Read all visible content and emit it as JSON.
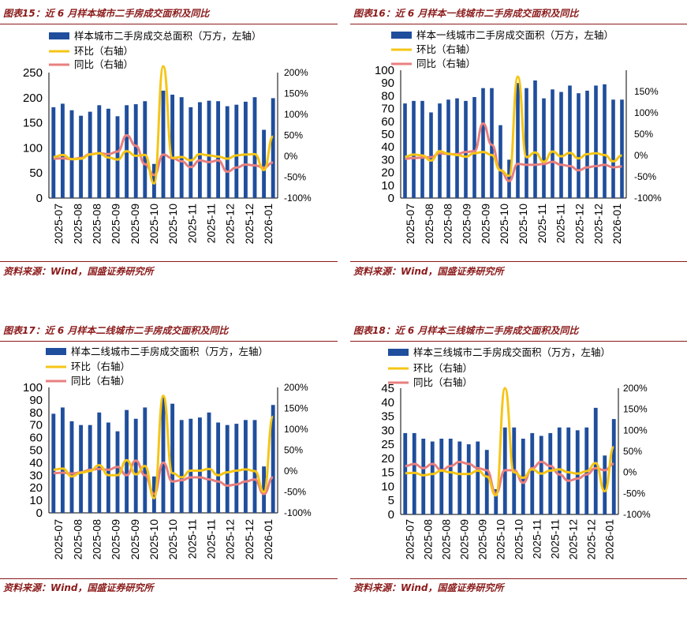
{
  "colors": {
    "bar": "#1f4e9c",
    "mom": "#f5c516",
    "yoy": "#e8807f",
    "title": "#8b1a1a"
  },
  "source_text": "资料来源：Wind，国盛证券研究所",
  "x_tick_labels": [
    "2025-07",
    "2025-08",
    "2025-08",
    "2025-09",
    "2025-09",
    "2025-10",
    "2025-10",
    "2025-11",
    "2025-11",
    "2025-12",
    "2025-12",
    "2026-01"
  ],
  "chart_data": [
    {
      "type": "bar",
      "title": "图表15：近 6 月样本城市二手房成交面积及同比",
      "legend": [
        "样本城市二手房成交总面积（万方，左轴）",
        "环比（右轴）",
        "同比（右轴）"
      ],
      "left_axis": {
        "min": 0,
        "max": 250,
        "ticks": [
          "0",
          "50",
          "100",
          "150",
          "200",
          "250"
        ]
      },
      "right_axis": {
        "min": -100,
        "max": 200,
        "ticks": [
          "-100%",
          "-50%",
          "0%",
          "50%",
          "100%",
          "150%",
          "200%"
        ]
      },
      "bars": [
        181,
        188,
        175,
        164,
        172,
        185,
        178,
        163,
        185,
        187,
        193,
        68,
        214,
        206,
        201,
        181,
        191,
        194,
        193,
        183,
        186,
        192,
        201,
        136,
        199
      ],
      "mom": [
        -2,
        3,
        -7,
        -6,
        4,
        7,
        -3,
        -8,
        12,
        1,
        3,
        -65,
        215,
        -4,
        -2,
        -10,
        5,
        2,
        -1,
        -6,
        2,
        4,
        5,
        -33,
        47
      ],
      "yoy": [
        -6,
        -5,
        -7,
        -4,
        5,
        7,
        5,
        11,
        50,
        25,
        -19,
        -45,
        4,
        -5,
        -12,
        -26,
        -10,
        -14,
        -10,
        -37,
        -27,
        -20,
        -22,
        -27,
        -15
      ]
    },
    {
      "type": "bar",
      "title": "图表16：近 6 月样本一线城市二手房成交面积及同比",
      "legend": [
        "样本一线城市二手房成交面积（万方，左轴）",
        "环比（右轴）",
        "同比（右轴）"
      ],
      "left_axis": {
        "min": 0,
        "max": 100,
        "ticks": [
          "0",
          "10",
          "20",
          "30",
          "40",
          "50",
          "60",
          "70",
          "80",
          "90",
          "100"
        ]
      },
      "right_axis": {
        "min": -100,
        "max": 200,
        "ticks": [
          "-100%",
          "-50%",
          "0%",
          "50%",
          "100%",
          "150%"
        ]
      },
      "bars": [
        74,
        76,
        76,
        67,
        74,
        77,
        78,
        76,
        79,
        86,
        86,
        57,
        30,
        90,
        86,
        92,
        78,
        85,
        83,
        88,
        82,
        84,
        88,
        89,
        77,
        77
      ],
      "mom": [
        -3,
        2,
        0,
        -12,
        10,
        4,
        1,
        -3,
        5,
        8,
        1,
        -35,
        -48,
        185,
        -4,
        7,
        -15,
        9,
        -2,
        6,
        -7,
        3,
        5,
        1,
        -14,
        0
      ],
      "yoy": [
        -8,
        -6,
        -5,
        -4,
        5,
        3,
        3,
        8,
        10,
        75,
        25,
        -35,
        -60,
        -20,
        -22,
        -22,
        -20,
        -15,
        -22,
        -25,
        -35,
        -28,
        -25,
        -22,
        -28,
        -26
      ]
    },
    {
      "type": "bar",
      "title": "图表17：近 6 月样本二线城市二手房成交面积及同比",
      "legend": [
        "样本二线城市二手房成交面积（万方，左轴）",
        "环比（右轴）",
        "同比（右轴）"
      ],
      "left_axis": {
        "min": 0,
        "max": 100,
        "ticks": [
          "0",
          "10",
          "20",
          "30",
          "40",
          "50",
          "60",
          "70",
          "80",
          "90",
          "100"
        ]
      },
      "right_axis": {
        "min": -100,
        "max": 200,
        "ticks": [
          "-100%",
          "-50%",
          "0%",
          "50%",
          "100%",
          "150%",
          "200%"
        ]
      },
      "bars": [
        79,
        84,
        73,
        70,
        70,
        80,
        72,
        65,
        82,
        75,
        84,
        29,
        92,
        87,
        74,
        75,
        76,
        80,
        72,
        70,
        71,
        74,
        74,
        37,
        86
      ],
      "mom": [
        3,
        6,
        -13,
        -4,
        0,
        14,
        -10,
        -10,
        26,
        -8,
        12,
        -65,
        180,
        -5,
        -15,
        1,
        1,
        5,
        -10,
        -3,
        1,
        4,
        0,
        -50,
        130
      ],
      "yoy": [
        -5,
        -4,
        -6,
        -3,
        3,
        5,
        3,
        10,
        -10,
        25,
        -10,
        -55,
        20,
        -25,
        -22,
        -15,
        -15,
        -20,
        -25,
        -35,
        -32,
        -25,
        -20,
        -55,
        -15
      ]
    },
    {
      "type": "bar",
      "title": "图表18：近 6 月样本三线城市二手房成交面积及同比",
      "legend": [
        "样本三线城市二手房成交面积（万方，左轴）",
        "环比（右轴）",
        "同比（右轴）"
      ],
      "left_axis": {
        "min": 0,
        "max": 45,
        "ticks": [
          "0",
          "5",
          "10",
          "15",
          "20",
          "25",
          "30",
          "35",
          "40",
          "45"
        ]
      },
      "right_axis": {
        "min": -100,
        "max": 200,
        "ticks": [
          "-100%",
          "-50%",
          "0%",
          "50%",
          "100%",
          "150%",
          "200%"
        ]
      },
      "bars": [
        29,
        29,
        27,
        26,
        27,
        27,
        26,
        25,
        26,
        23,
        9,
        31,
        31,
        27,
        29,
        28,
        29,
        31,
        31,
        30,
        31,
        38,
        21,
        34
      ],
      "mom": [
        -2,
        -1,
        -7,
        -4,
        4,
        0,
        -4,
        -4,
        4,
        -10,
        -55,
        200,
        0,
        -13,
        7,
        -3,
        4,
        7,
        0,
        -3,
        3,
        22,
        -45,
        60
      ],
      "yoy": [
        15,
        20,
        10,
        20,
        5,
        15,
        25,
        20,
        10,
        5,
        -50,
        5,
        5,
        -25,
        10,
        25,
        15,
        -5,
        -20,
        -15,
        -5,
        10,
        5,
        20
      ]
    }
  ]
}
